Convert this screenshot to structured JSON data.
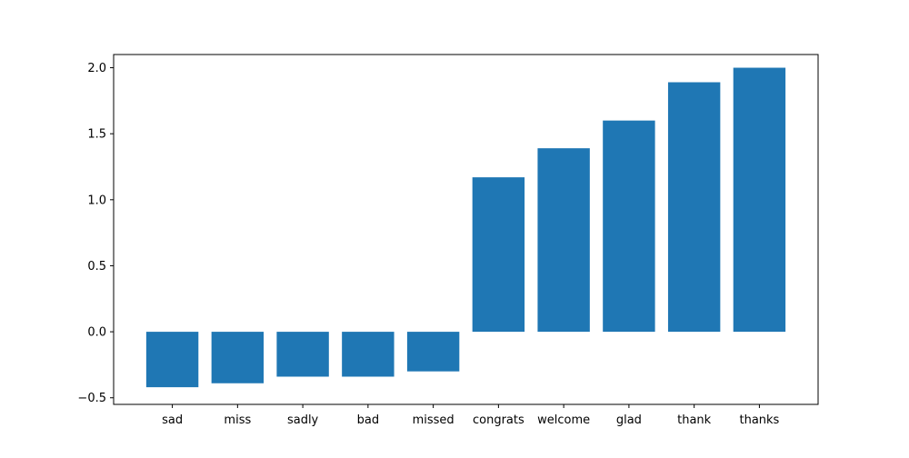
{
  "chart_data": {
    "type": "bar",
    "categories": [
      "sad",
      "miss",
      "sadly",
      "bad",
      "missed",
      "congrats",
      "welcome",
      "glad",
      "thank",
      "thanks"
    ],
    "values": [
      -0.42,
      -0.39,
      -0.34,
      -0.34,
      -0.3,
      1.17,
      1.39,
      1.6,
      1.89,
      2.0
    ],
    "title": "",
    "xlabel": "",
    "ylabel": "",
    "ylim": [
      -0.55,
      2.1
    ],
    "yticks": [
      -0.5,
      0.0,
      0.5,
      1.0,
      1.5,
      2.0
    ],
    "ytick_labels": [
      "−0.5",
      "0.0",
      "0.5",
      "1.0",
      "1.5",
      "2.0"
    ],
    "bar_color": "#1f77b4",
    "grid": false
  }
}
